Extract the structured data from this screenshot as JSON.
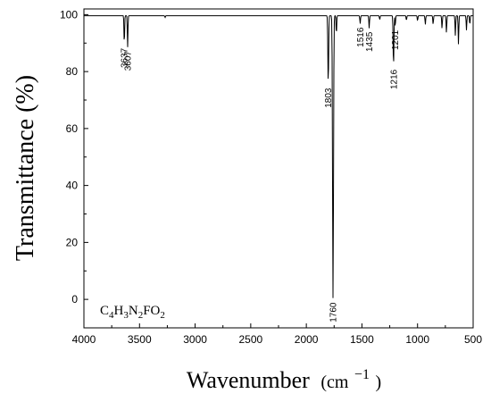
{
  "chart_data": {
    "type": "line",
    "title": "",
    "xlabel": "Wavenumber",
    "xlabel_unit_base": "(cm",
    "xlabel_unit_exp": "−1",
    "xlabel_unit_close": ")",
    "ylabel": "Transmittance (%)",
    "xlim": [
      4000,
      500
    ],
    "ylim": [
      -10,
      102
    ],
    "x_reversed": true,
    "grid": false,
    "x_ticks": [
      4000,
      3500,
      3000,
      2500,
      2000,
      1500,
      1000,
      500
    ],
    "y_ticks": [
      0,
      20,
      40,
      60,
      80,
      100
    ],
    "baseline": 99.6,
    "line_color": "#000000",
    "peaks": [
      {
        "x": 3637,
        "y": 89.5,
        "label": "3637"
      },
      {
        "x": 3607,
        "y": 88.5,
        "label": "3607"
      },
      {
        "x": 3270,
        "y": 99.0,
        "label": ""
      },
      {
        "x": 1803,
        "y": 75.5,
        "label": "1803"
      },
      {
        "x": 1760,
        "y": 0.2,
        "label": "1760"
      },
      {
        "x": 1730,
        "y": 93.0,
        "label": ""
      },
      {
        "x": 1516,
        "y": 96.8,
        "label": "1516"
      },
      {
        "x": 1435,
        "y": 95.2,
        "label": "1435"
      },
      {
        "x": 1340,
        "y": 98.2,
        "label": ""
      },
      {
        "x": 1216,
        "y": 82.0,
        "label": "1216"
      },
      {
        "x": 1201,
        "y": 95.8,
        "label": "1201"
      },
      {
        "x": 1100,
        "y": 98.0,
        "label": ""
      },
      {
        "x": 1000,
        "y": 97.8,
        "label": ""
      },
      {
        "x": 930,
        "y": 96.5,
        "label": ""
      },
      {
        "x": 860,
        "y": 96.5,
        "label": ""
      },
      {
        "x": 780,
        "y": 95.0,
        "label": ""
      },
      {
        "x": 740,
        "y": 93.5,
        "label": ""
      },
      {
        "x": 660,
        "y": 92.5,
        "label": ""
      },
      {
        "x": 632,
        "y": 89.5,
        "label": ""
      },
      {
        "x": 560,
        "y": 94.5,
        "label": ""
      },
      {
        "x": 530,
        "y": 96.5,
        "label": ""
      }
    ],
    "formula": [
      {
        "text": "C",
        "sub": false
      },
      {
        "text": "4",
        "sub": true
      },
      {
        "text": "H",
        "sub": false
      },
      {
        "text": "3",
        "sub": true
      },
      {
        "text": "N",
        "sub": false
      },
      {
        "text": "2",
        "sub": true
      },
      {
        "text": "FO",
        "sub": false
      },
      {
        "text": "2",
        "sub": true
      }
    ]
  }
}
